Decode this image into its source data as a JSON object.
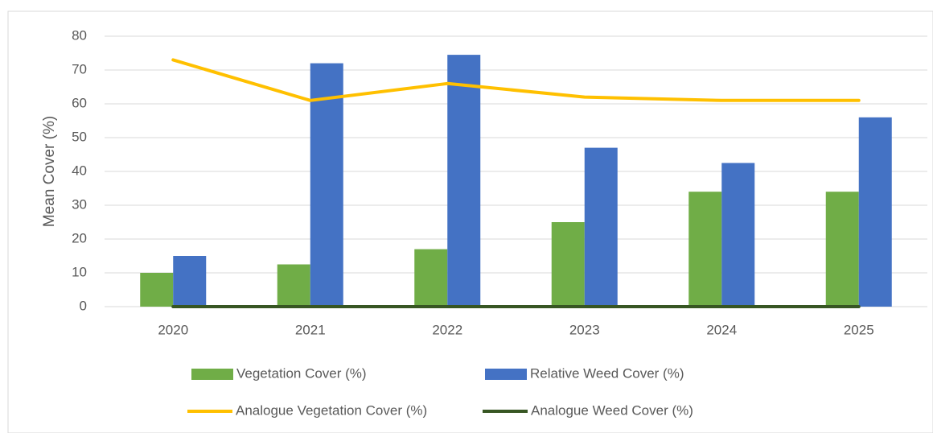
{
  "chart_data": {
    "type": "bar",
    "y_label": "Mean Cover (%)",
    "categories": [
      "2020",
      "2021",
      "2022",
      "2023",
      "2024",
      "2025"
    ],
    "series": [
      {
        "name": "Vegetation Cover (%)",
        "type": "bar",
        "color": "#70ad47",
        "values": [
          10,
          12.5,
          17,
          25,
          34,
          34
        ]
      },
      {
        "name": "Relative Weed Cover (%)",
        "type": "bar",
        "color": "#4472c4",
        "values": [
          15,
          72,
          74.5,
          47,
          42.5,
          56
        ]
      },
      {
        "name": "Analogue Vegetation Cover (%)",
        "type": "line",
        "color": "#ffc000",
        "values": [
          73,
          61,
          66,
          62,
          61,
          61
        ]
      },
      {
        "name": "Analogue Weed Cover (%)",
        "type": "line",
        "color": "#375623",
        "values": [
          0,
          0,
          0,
          0,
          0,
          0
        ]
      }
    ],
    "ylim": [
      0,
      80
    ],
    "yticks": [
      0,
      10,
      20,
      30,
      40,
      50,
      60,
      70,
      80
    ],
    "grid": true,
    "legend": "bottom"
  }
}
